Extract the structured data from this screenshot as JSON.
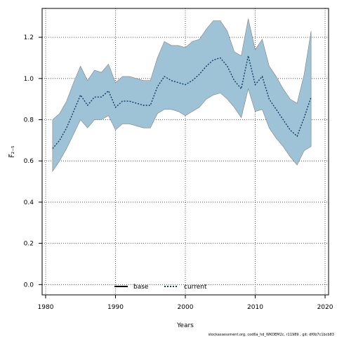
{
  "chart_data": {
    "type": "area",
    "xlabel": "Years",
    "ylabel": "F̅₂₋₅",
    "xlim": [
      1979.5,
      2020.5
    ],
    "ylim": [
      -0.05,
      1.34
    ],
    "x_ticks": [
      1980,
      1990,
      2000,
      2010,
      2020
    ],
    "y_ticks": [
      0.0,
      0.2,
      0.4,
      0.6,
      0.8,
      1.0,
      1.2
    ],
    "grid": true,
    "legend_placement": "bottom-center",
    "legend": [
      {
        "name": "base",
        "color": "#000000",
        "style": "solid"
      },
      {
        "name": "current",
        "color": "#0b3d66",
        "style": "dotted"
      }
    ],
    "band_color": "#9fc3d6",
    "band_edge_color": "#808080",
    "x": [
      1981,
      1982,
      1983,
      1984,
      1985,
      1986,
      1987,
      1988,
      1989,
      1990,
      1991,
      1992,
      1993,
      1994,
      1995,
      1996,
      1997,
      1998,
      1999,
      2000,
      2001,
      2002,
      2003,
      2004,
      2005,
      2006,
      2007,
      2008,
      2009,
      2010,
      2011,
      2012,
      2013,
      2014,
      2015,
      2016,
      2017,
      2018
    ],
    "series": [
      {
        "name": "current",
        "values": [
          0.66,
          0.7,
          0.76,
          0.84,
          0.92,
          0.87,
          0.91,
          0.91,
          0.94,
          0.86,
          0.89,
          0.89,
          0.88,
          0.87,
          0.87,
          0.96,
          1.01,
          0.99,
          0.98,
          0.97,
          0.99,
          1.02,
          1.06,
          1.09,
          1.1,
          1.06,
          0.99,
          0.95,
          1.11,
          0.97,
          1.01,
          0.9,
          0.85,
          0.8,
          0.75,
          0.72,
          0.81,
          0.91
        ]
      }
    ],
    "band": {
      "upper": [
        0.8,
        0.83,
        0.89,
        0.98,
        1.06,
        0.99,
        1.04,
        1.03,
        1.07,
        0.98,
        1.01,
        1.01,
        1.0,
        0.99,
        0.99,
        1.1,
        1.18,
        1.16,
        1.16,
        1.15,
        1.18,
        1.19,
        1.24,
        1.28,
        1.28,
        1.23,
        1.13,
        1.11,
        1.29,
        1.14,
        1.19,
        1.06,
        1.01,
        0.95,
        0.9,
        0.88,
        1.02,
        1.23
      ],
      "lower": [
        0.55,
        0.6,
        0.66,
        0.73,
        0.8,
        0.76,
        0.8,
        0.8,
        0.82,
        0.75,
        0.78,
        0.78,
        0.77,
        0.76,
        0.76,
        0.83,
        0.85,
        0.85,
        0.84,
        0.82,
        0.84,
        0.86,
        0.9,
        0.92,
        0.93,
        0.9,
        0.86,
        0.81,
        0.95,
        0.84,
        0.85,
        0.76,
        0.71,
        0.67,
        0.62,
        0.58,
        0.65,
        0.67
      ]
    }
  },
  "footer": "stockassessment.org, cod6a_hd_WKDEM2c, r11989 , git: df0b7c1bcb83"
}
